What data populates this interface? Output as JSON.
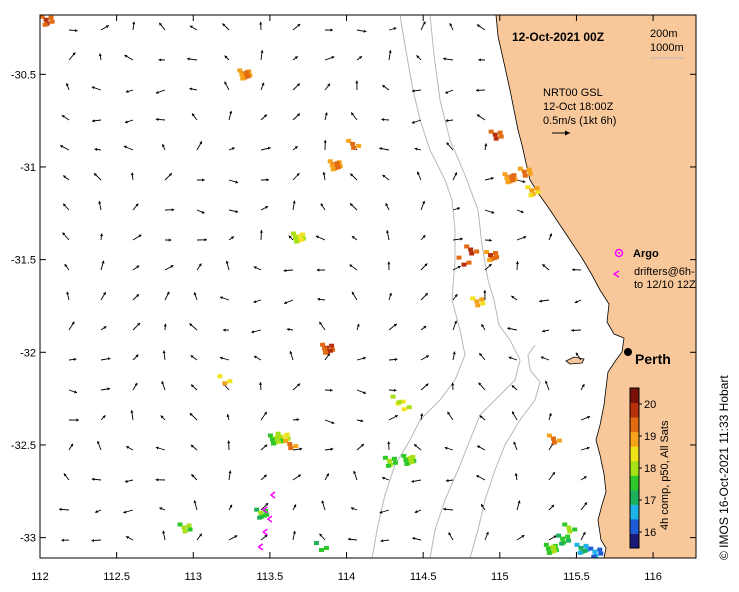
{
  "map": {
    "title": "12-Oct-2021 00Z",
    "depth_contours": [
      "200m",
      "1000m"
    ],
    "source_block": [
      "NRT00 GSL",
      "12-Oct 18:00Z",
      "0.5m/s (1kt 6h)"
    ],
    "legend": {
      "argo_label": "Argo",
      "drifters_label_1": "drifters@6h-",
      "drifters_label_2": "to 12/10 12Z",
      "argo_color": "#ff00ff",
      "drifter_color": "#ff00ff"
    },
    "city_label": "Perth",
    "credit": "© IMOS 16-Oct-2021 11:33 Hobart",
    "land_color": "#f8c89a",
    "contour_color": "#b8b8b8"
  },
  "axes": {
    "x_ticks": [
      "112",
      "112.5",
      "113",
      "113.5",
      "114",
      "114.5",
      "115",
      "115.5",
      "116"
    ],
    "y_ticks": [
      "-30.5",
      "-31",
      "-31.5",
      "-32",
      "-32.5",
      "-33"
    ]
  },
  "colorbar": {
    "label": "4h comp, p50, All Sats",
    "ticks": [
      "20",
      "19",
      "18",
      "17",
      "16"
    ],
    "range": [
      15.5,
      20.5
    ],
    "colors": [
      "#1a1a7a",
      "#1e5cd6",
      "#1fb4e8",
      "#1db05a",
      "#2ec82a",
      "#a8e018",
      "#f2e21a",
      "#f5a31a",
      "#e26a10",
      "#b8300a",
      "#7a1208"
    ]
  },
  "sst_patches": [
    {
      "lon": 112.03,
      "lat": -30.2,
      "t": 19.5
    },
    {
      "lon": 113.32,
      "lat": -30.49,
      "t": 19.0
    },
    {
      "lon": 114.03,
      "lat": -30.87,
      "t": 19.0
    },
    {
      "lon": 113.91,
      "lat": -30.98,
      "t": 19.0
    },
    {
      "lon": 114.96,
      "lat": -30.82,
      "t": 19.5
    },
    {
      "lon": 115.05,
      "lat": -31.05,
      "t": 19.2
    },
    {
      "lon": 115.15,
      "lat": -31.02,
      "t": 19.0
    },
    {
      "lon": 115.2,
      "lat": -31.12,
      "t": 18.8
    },
    {
      "lon": 113.67,
      "lat": -31.37,
      "t": 18.3
    },
    {
      "lon": 114.8,
      "lat": -31.44,
      "t": 19.5
    },
    {
      "lon": 114.75,
      "lat": -31.5,
      "t": 19.6
    },
    {
      "lon": 114.93,
      "lat": -31.47,
      "t": 19.3
    },
    {
      "lon": 114.84,
      "lat": -31.72,
      "t": 18.8
    },
    {
      "lon": 113.86,
      "lat": -31.97,
      "t": 19.6
    },
    {
      "lon": 113.19,
      "lat": -32.14,
      "t": 18.8
    },
    {
      "lon": 114.32,
      "lat": -32.25,
      "t": 18.5
    },
    {
      "lon": 114.36,
      "lat": -32.28,
      "t": 18.2
    },
    {
      "lon": 113.57,
      "lat": -32.45,
      "t": 18.3
    },
    {
      "lon": 113.52,
      "lat": -32.46,
      "t": 17.9
    },
    {
      "lon": 113.62,
      "lat": -32.49,
      "t": 19.0
    },
    {
      "lon": 114.27,
      "lat": -32.58,
      "t": 17.7
    },
    {
      "lon": 114.39,
      "lat": -32.57,
      "t": 17.9
    },
    {
      "lon": 115.34,
      "lat": -32.46,
      "t": 19.0
    },
    {
      "lon": 113.43,
      "lat": -32.86,
      "t": 17.6
    },
    {
      "lon": 112.93,
      "lat": -32.94,
      "t": 17.9
    },
    {
      "lon": 113.82,
      "lat": -33.04,
      "t": 17.6
    },
    {
      "lon": 115.44,
      "lat": -32.94,
      "t": 17.8
    },
    {
      "lon": 115.4,
      "lat": -33.0,
      "t": 17.4
    },
    {
      "lon": 115.52,
      "lat": -33.05,
      "t": 16.8
    },
    {
      "lon": 115.61,
      "lat": -33.07,
      "t": 16.3
    },
    {
      "lon": 115.32,
      "lat": -33.05,
      "t": 17.7
    }
  ],
  "drifters": [
    {
      "lon": 113.52,
      "lat": -32.77
    },
    {
      "lon": 113.47,
      "lat": -32.85
    },
    {
      "lon": 113.5,
      "lat": -32.9
    },
    {
      "lon": 113.47,
      "lat": -32.97
    },
    {
      "lon": 113.44,
      "lat": -33.05
    }
  ]
}
